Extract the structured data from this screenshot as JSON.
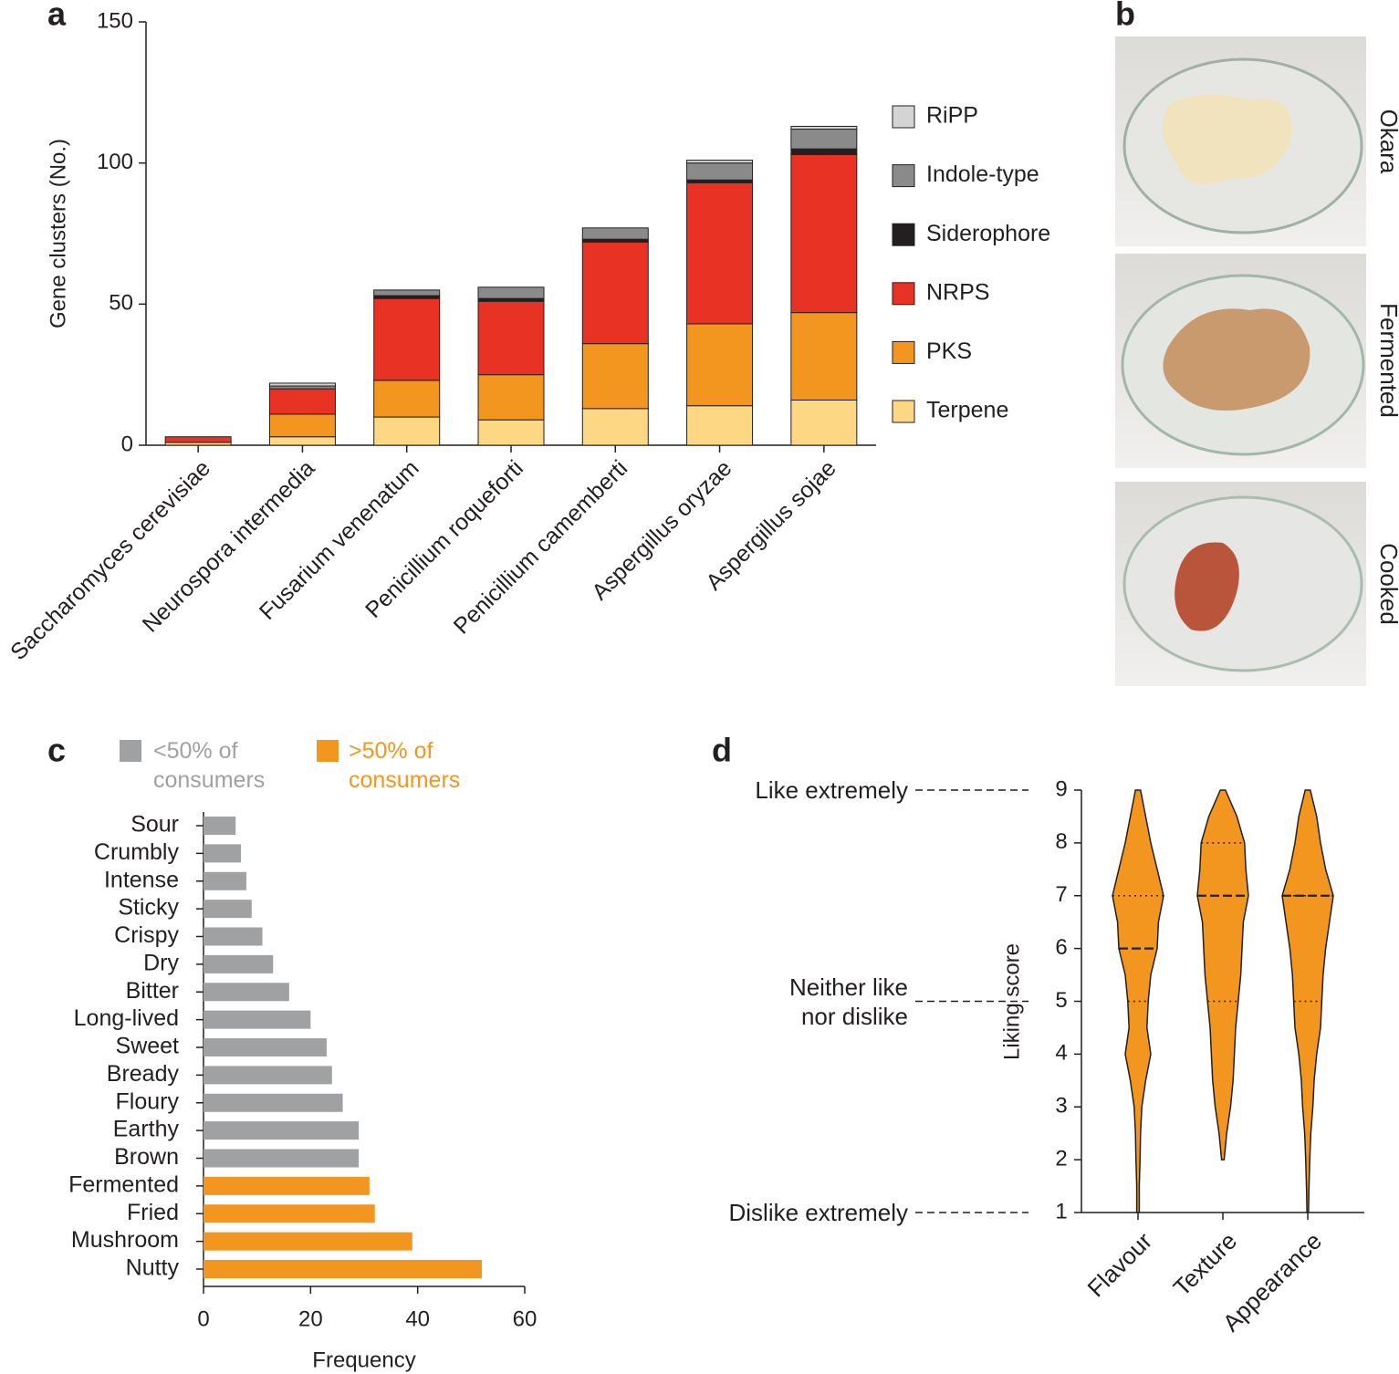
{
  "chart_data": [
    {
      "panel_label": "a",
      "type": "stacked_bar",
      "ylabel": "Gene clusters (No.)",
      "categories": [
        "Saccharomyces cerevisiae",
        "Neurospora intermedia",
        "Fusarium venenatum",
        "Penicillium roqueforti",
        "Penicillium camemberti",
        "Aspergillus oryzae",
        "Aspergillus sojae"
      ],
      "series": [
        {
          "name": "Terpene",
          "color": "#fdd783",
          "values": [
            1,
            3,
            10,
            9,
            13,
            14,
            16
          ]
        },
        {
          "name": "PKS",
          "color": "#f3961f",
          "values": [
            0,
            8,
            13,
            16,
            23,
            29,
            31
          ]
        },
        {
          "name": "NRPS",
          "color": "#e83224",
          "values": [
            2,
            9,
            29,
            26,
            36,
            50,
            56
          ]
        },
        {
          "name": "Siderophore",
          "color": "#231f20",
          "values": [
            0,
            0,
            1,
            1,
            1,
            1,
            2
          ]
        },
        {
          "name": "Indole-type",
          "color": "#8a8a8a",
          "values": [
            0,
            1,
            2,
            4,
            4,
            6,
            7
          ]
        },
        {
          "name": "RiPP",
          "color": "#d4d4d4",
          "values": [
            0,
            1,
            0,
            0,
            0,
            1,
            1
          ]
        }
      ],
      "ylim": [
        0,
        150
      ],
      "yticks": [
        0,
        50,
        100,
        150
      ]
    },
    {
      "panel_label": "c",
      "type": "barh",
      "xlabel": "Frequency",
      "categories": [
        "Sour",
        "Crumbly",
        "Intense",
        "Sticky",
        "Crispy",
        "Dry",
        "Bitter",
        "Long-lived",
        "Sweet",
        "Bready",
        "Floury",
        "Earthy",
        "Brown",
        "Fermented",
        "Fried",
        "Mushroom",
        "Nutty"
      ],
      "series": [
        {
          "name": "<50% of consumers",
          "color": "#a0a1a3",
          "values": [
            6,
            7,
            8,
            9,
            11,
            13,
            16,
            20,
            23,
            24,
            26,
            29,
            29,
            null,
            null,
            null,
            null
          ]
        },
        {
          "name": ">50% of consumers",
          "color": "#f3961f",
          "values": [
            null,
            null,
            null,
            null,
            null,
            null,
            null,
            null,
            null,
            null,
            null,
            null,
            null,
            31,
            32,
            39,
            52
          ]
        }
      ],
      "xlim": [
        0,
        60
      ],
      "xticks": [
        0,
        20,
        40,
        60
      ]
    },
    {
      "panel_label": "d",
      "type": "violin",
      "ylabel": "Liking score",
      "color": "#f3961f",
      "categories": [
        "Flavour",
        "Texture",
        "Appearance"
      ],
      "density_scores": [
        1,
        1.5,
        2,
        2.5,
        3,
        3.5,
        4,
        4.5,
        5,
        5.5,
        6,
        6.5,
        7,
        7.5,
        8,
        8.5,
        9
      ],
      "violins": [
        {
          "q1": 5,
          "median": 6,
          "q3": 7,
          "density": [
            0.05,
            0.05,
            0.08,
            0.1,
            0.15,
            0.3,
            0.5,
            0.35,
            0.4,
            0.5,
            0.75,
            0.8,
            1,
            0.75,
            0.5,
            0.3,
            0.1
          ]
        },
        {
          "q1": 5,
          "median": 7,
          "q3": 8,
          "density": [
            null,
            null,
            0.05,
            0.15,
            0.3,
            0.4,
            0.45,
            0.5,
            0.6,
            0.7,
            0.75,
            0.8,
            1,
            0.9,
            0.85,
            0.55,
            0.1
          ]
        },
        {
          "q1": 5,
          "median": 7,
          "q3": 7,
          "density": [
            0.03,
            0.05,
            0.08,
            0.12,
            0.2,
            0.25,
            0.35,
            0.5,
            0.55,
            0.6,
            0.7,
            0.85,
            1,
            0.7,
            0.5,
            0.35,
            0.1
          ]
        }
      ],
      "ylim": [
        1,
        9
      ],
      "yticks": [
        1,
        2,
        3,
        4,
        5,
        6,
        7,
        8,
        9
      ],
      "annotations": [
        {
          "text": "Like extremely",
          "value": 9
        },
        {
          "text": "Neither like nor dislike",
          "value": 5
        },
        {
          "text": "Dislike extremely",
          "value": 1
        }
      ]
    }
  ],
  "photos": {
    "panel_label": "b",
    "captions": [
      "Okara",
      "Fermented",
      "Cooked"
    ]
  }
}
